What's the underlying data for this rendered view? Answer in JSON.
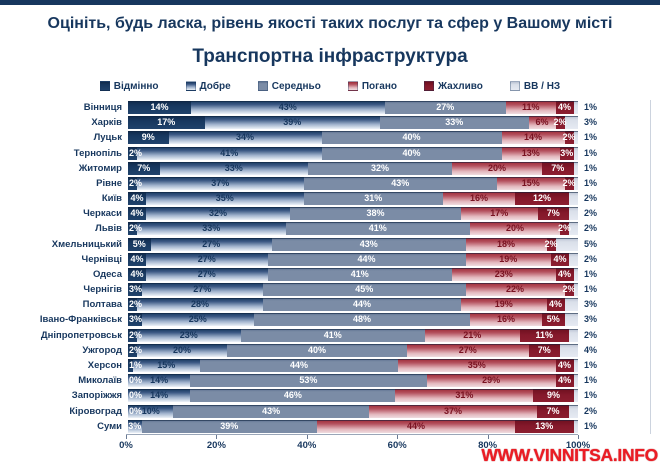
{
  "header": {
    "title": "Оцініть, будь ласка, рівень якості таких послуг та сфер у Вашому місті",
    "subtitle": "Транспортна інфраструктура"
  },
  "legend": {
    "items": [
      {
        "key": "excellent",
        "label": "Відмінно"
      },
      {
        "key": "good",
        "label": "Добре"
      },
      {
        "key": "average",
        "label": "Середньо"
      },
      {
        "key": "bad",
        "label": "Погано"
      },
      {
        "key": "terrible",
        "label": "Жахливо"
      },
      {
        "key": "no_answer",
        "label": "ВВ / НЗ"
      }
    ]
  },
  "chart_data": {
    "type": "bar",
    "variant": "horizontal-stacked-100",
    "title": "Транспортна інфраструктура",
    "series_names": [
      "Відмінно",
      "Добре",
      "Середньо",
      "Погано",
      "Жахливо",
      "ВВ / НЗ"
    ],
    "categories": [
      "Вінниця",
      "Харків",
      "Луцьк",
      "Тернопіль",
      "Житомир",
      "Рівне",
      "Київ",
      "Черкаси",
      "Львів",
      "Хмельницький",
      "Чернівці",
      "Одеса",
      "Чернігів",
      "Полтава",
      "Івано-Франківськ",
      "Дніпропетровськ",
      "Ужгород",
      "Херсон",
      "Миколаїв",
      "Запоріжжя",
      "Кіровоград",
      "Суми"
    ],
    "rows": [
      {
        "city": "Вінниця",
        "values": [
          14,
          43,
          27,
          11,
          4,
          1
        ],
        "labels": [
          "14%",
          "43%",
          "27%",
          "11%",
          "4%",
          "1%"
        ]
      },
      {
        "city": "Харків",
        "values": [
          17,
          39,
          33,
          6,
          2,
          3
        ],
        "labels": [
          "17%",
          "39%",
          "33%",
          "6%",
          "2%",
          "3%"
        ]
      },
      {
        "city": "Луцьк",
        "values": [
          9,
          34,
          40,
          14,
          2,
          1
        ],
        "labels": [
          "9%",
          "34%",
          "40%",
          "14%",
          "2%",
          "1%"
        ]
      },
      {
        "city": "Тернопіль",
        "values": [
          2,
          41,
          40,
          13,
          3,
          1
        ],
        "labels": [
          "2%",
          "41%",
          "40%",
          "13%",
          "3%",
          "1%"
        ]
      },
      {
        "city": "Житомир",
        "values": [
          7,
          33,
          32,
          20,
          7,
          1
        ],
        "labels": [
          "7%",
          "33%",
          "32%",
          "20%",
          "7%",
          "1%"
        ]
      },
      {
        "city": "Рівне",
        "values": [
          2,
          37,
          43,
          15,
          2,
          1
        ],
        "labels": [
          "2%",
          "37%",
          "43%",
          "15%",
          "2%",
          "1%"
        ]
      },
      {
        "city": "Київ",
        "values": [
          4,
          35,
          31,
          16,
          12,
          2
        ],
        "labels": [
          "4%",
          "35%",
          "31%",
          "16%",
          "12%",
          "2%"
        ]
      },
      {
        "city": "Черкаси",
        "values": [
          4,
          32,
          38,
          17,
          7,
          2
        ],
        "labels": [
          "4%",
          "32%",
          "38%",
          "17%",
          "7%",
          "2%"
        ]
      },
      {
        "city": "Львів",
        "values": [
          2,
          33,
          41,
          20,
          2,
          2
        ],
        "labels": [
          "2%",
          "33%",
          "41%",
          "20%",
          "2%",
          "2%"
        ]
      },
      {
        "city": "Хмельницький",
        "values": [
          5,
          27,
          43,
          18,
          2,
          5
        ],
        "labels": [
          "5%",
          "27%",
          "43%",
          "18%",
          "2%",
          "5%"
        ]
      },
      {
        "city": "Чернівці",
        "values": [
          4,
          27,
          44,
          19,
          4,
          2
        ],
        "labels": [
          "4%",
          "27%",
          "44%",
          "19%",
          "4%",
          "2%"
        ]
      },
      {
        "city": "Одеса",
        "values": [
          4,
          27,
          41,
          23,
          4,
          1
        ],
        "labels": [
          "4%",
          "27%",
          "41%",
          "23%",
          "4%",
          "1%"
        ]
      },
      {
        "city": "Чернігів",
        "values": [
          3,
          27,
          45,
          22,
          2,
          1
        ],
        "labels": [
          "3%",
          "27%",
          "45%",
          "22%",
          "2%",
          "1%"
        ]
      },
      {
        "city": "Полтава",
        "values": [
          2,
          28,
          44,
          19,
          4,
          3
        ],
        "labels": [
          "2%",
          "28%",
          "44%",
          "19%",
          "4%",
          "3%"
        ]
      },
      {
        "city": "Івано-Франківськ",
        "values": [
          3,
          25,
          48,
          16,
          5,
          3
        ],
        "labels": [
          "3%",
          "25%",
          "48%",
          "16%",
          "5%",
          "3%"
        ]
      },
      {
        "city": "Дніпропетровськ",
        "values": [
          2,
          23,
          41,
          21,
          11,
          2
        ],
        "labels": [
          "2%",
          "23%",
          "41%",
          "21%",
          "11%",
          "2%"
        ]
      },
      {
        "city": "Ужгород",
        "values": [
          2,
          20,
          40,
          27,
          7,
          4
        ],
        "labels": [
          "2%",
          "20%",
          "40%",
          "27%",
          "7%",
          "4%"
        ]
      },
      {
        "city": "Херсон",
        "values": [
          1,
          15,
          44,
          35,
          4,
          1
        ],
        "labels": [
          "1%",
          "15%",
          "44%",
          "35%",
          "4%",
          "1%"
        ]
      },
      {
        "city": "Миколаїв",
        "values": [
          0,
          14,
          53,
          29,
          4,
          1
        ],
        "labels": [
          "0%",
          "14%",
          "53%",
          "29%",
          "4%",
          "1%"
        ]
      },
      {
        "city": "Запоріжжя",
        "values": [
          0,
          14,
          46,
          31,
          9,
          1
        ],
        "labels": [
          "0%",
          "14%",
          "46%",
          "31%",
          "9%",
          "1%"
        ]
      },
      {
        "city": "Кіровоград",
        "values": [
          0,
          10,
          43,
          37,
          7,
          2
        ],
        "labels": [
          "0%",
          "10%",
          "43%",
          "37%",
          "7%",
          "2%"
        ]
      },
      {
        "city": "Суми",
        "values": [
          0,
          3,
          39,
          44,
          13,
          1
        ],
        "labels": [
          "",
          "3%",
          "39%",
          "44%",
          "13%",
          "1%"
        ]
      }
    ],
    "x_ticks": [
      "0%",
      "20%",
      "40%",
      "60%",
      "80%",
      "100%"
    ],
    "xlim": [
      0,
      100
    ],
    "grid": false,
    "legend_position": "top",
    "colors": {
      "navy": "#17375E",
      "excellent": "#17375E",
      "good_top": "#17375E",
      "good_bottom": "#EDF2F8",
      "average": "#7B8CA6",
      "bad_top": "#9E2B38",
      "bad_bottom": "#F0DCDF",
      "terrible": "#84182A",
      "no_answer": "#D9DFE9",
      "watermark": "#EC1C24"
    }
  },
  "watermark": {
    "text": "WWW.VINNITSA.INFO"
  }
}
